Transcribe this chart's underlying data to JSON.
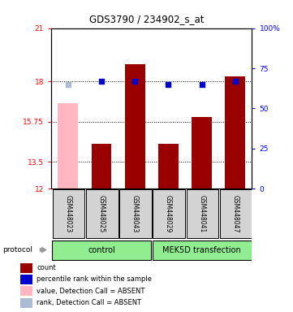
{
  "title": "GDS3790 / 234902_s_at",
  "samples": [
    "GSM448023",
    "GSM448025",
    "GSM448043",
    "GSM448029",
    "GSM448041",
    "GSM448047"
  ],
  "bar_values": [
    16.8,
    14.5,
    19.0,
    14.5,
    16.0,
    18.3
  ],
  "bar_absent": [
    true,
    false,
    false,
    false,
    false,
    false
  ],
  "dot_values_pct": [
    65,
    67,
    67,
    65,
    65,
    67
  ],
  "dot_absent": [
    true,
    false,
    false,
    false,
    false,
    false
  ],
  "ylim_left": [
    12,
    21
  ],
  "ylim_right": [
    0,
    100
  ],
  "yticks_left": [
    12,
    13.5,
    15.75,
    18,
    21
  ],
  "yticks_right": [
    0,
    25,
    50,
    75,
    100
  ],
  "ytick_labels_left": [
    "12",
    "13.5",
    "15.75",
    "18",
    "21"
  ],
  "ytick_labels_right": [
    "0",
    "25",
    "50",
    "75",
    "100%"
  ],
  "bar_color": "#990000",
  "bar_absent_color": "#FFB6C1",
  "dot_color": "#0000CC",
  "dot_absent_color": "#AABBD4",
  "bar_width": 0.6,
  "legend_labels": [
    "count",
    "percentile rank within the sample",
    "value, Detection Call = ABSENT",
    "rank, Detection Call = ABSENT"
  ],
  "legend_colors": [
    "#990000",
    "#0000CC",
    "#FFB6C1",
    "#AABBD4"
  ],
  "green_light": "#90EE90",
  "gray_box": "#d3d3d3",
  "plot_facecolor": "#ffffff"
}
